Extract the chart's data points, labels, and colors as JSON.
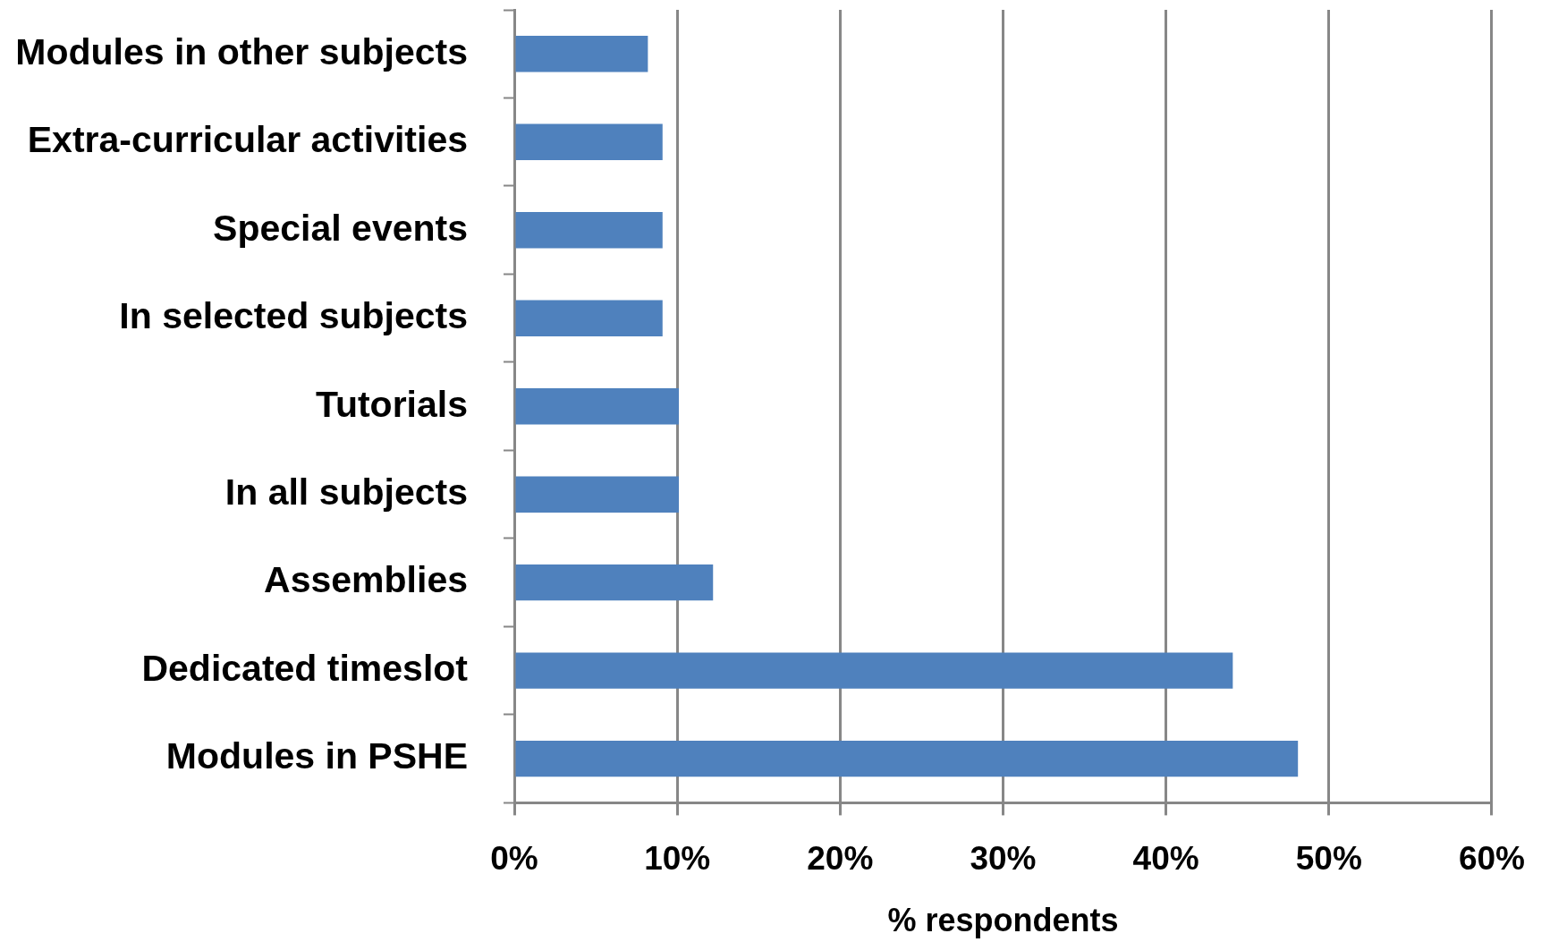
{
  "chart_data": {
    "type": "bar",
    "orientation": "horizontal",
    "xlabel": "% respondents",
    "categories": [
      "Modules in other subjects",
      "Extra-curricular activities",
      "Special events",
      "In selected subjects",
      "Tutorials",
      "In all subjects",
      "Assemblies",
      "Dedicated timeslot",
      "Modules in PSHE"
    ],
    "values": [
      8.2,
      9.1,
      9.1,
      9.1,
      10.1,
      10.1,
      12.2,
      44.1,
      48.1
    ],
    "color": "#4f81bd",
    "xlim": [
      0,
      60
    ],
    "xticks": [
      {
        "value": 0,
        "label": "0%"
      },
      {
        "value": 10,
        "label": "10%"
      },
      {
        "value": 20,
        "label": "20%"
      },
      {
        "value": 30,
        "label": "30%"
      },
      {
        "value": 40,
        "label": "40%"
      },
      {
        "value": 50,
        "label": "50%"
      },
      {
        "value": 60,
        "label": "60%"
      }
    ],
    "grid": "x"
  }
}
